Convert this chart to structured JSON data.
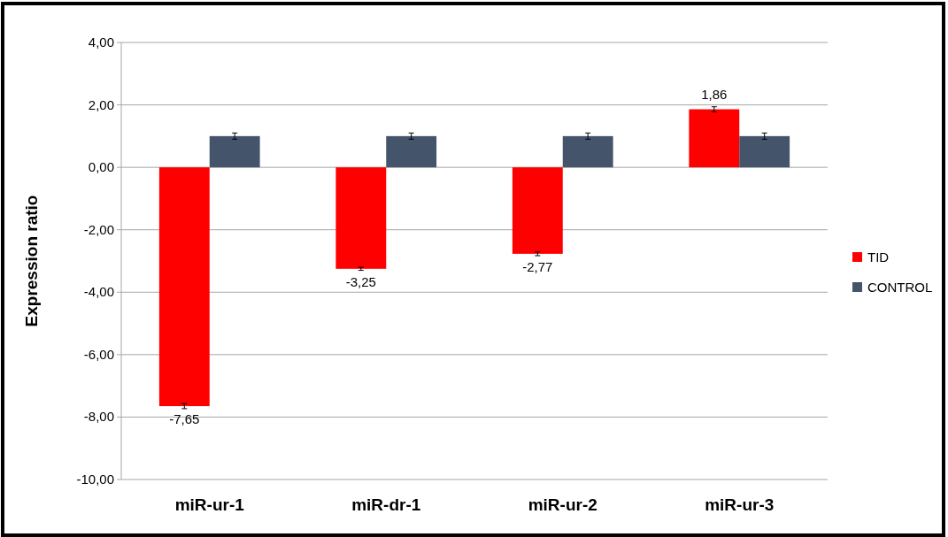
{
  "chart_data": {
    "type": "bar",
    "ylabel": "Expression ratio",
    "categories": [
      "miR-ur-1",
      "miR-dr-1",
      "miR-ur-2",
      "miR-ur-3"
    ],
    "series": [
      {
        "name": "TID",
        "color": "#ff0000",
        "values": [
          -7.65,
          -3.25,
          -2.77,
          1.86
        ],
        "errors": [
          0.08,
          0.05,
          0.06,
          0.08
        ],
        "value_labels": [
          "-7,65",
          "-3,25",
          "-2,77",
          "1,86"
        ]
      },
      {
        "name": "CONTROL",
        "color": "#44546a",
        "values": [
          1,
          1,
          1,
          1
        ],
        "errors": [
          0.1,
          0.1,
          0.1,
          0.1
        ]
      }
    ],
    "ylim": [
      -10,
      4
    ],
    "yticks": [
      {
        "value": -10,
        "label": "-10,00"
      },
      {
        "value": -8,
        "label": "-8,00"
      },
      {
        "value": -6,
        "label": "-6,00"
      },
      {
        "value": -4,
        "label": "-4,00"
      },
      {
        "value": -2,
        "label": "-2,00"
      },
      {
        "value": 0,
        "label": "0,00"
      },
      {
        "value": 2,
        "label": "2,00"
      },
      {
        "value": 4,
        "label": "4,00"
      }
    ],
    "grid": "y",
    "legend": "right"
  }
}
